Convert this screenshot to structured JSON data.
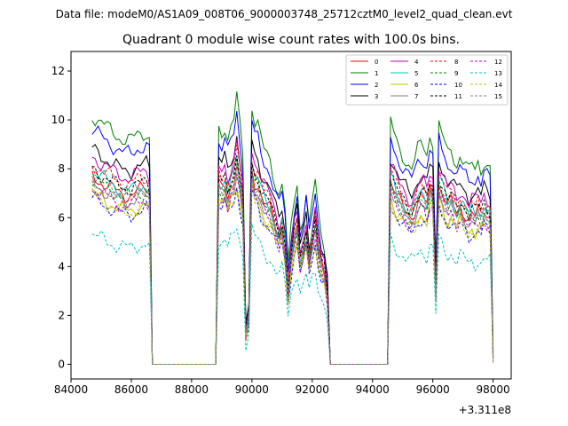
{
  "chart_data": {
    "type": "line",
    "suptitle": "Data file: modeM0/AS1A09_008T06_9000003748_25712cztM0_level2_quad_clean.evt",
    "title": "Quadrant 0 module wise count rates with 100.0s bins.",
    "xlabel": "",
    "ylabel": "",
    "x_offset_label": "+3.311e8",
    "xlim": [
      84000,
      98600
    ],
    "ylim": [
      -0.6,
      12.8
    ],
    "x_ticks": [
      84000,
      86000,
      88000,
      90000,
      92000,
      94000,
      96000,
      98000
    ],
    "x_tick_labels": [
      "84000",
      "86000",
      "88000",
      "90000",
      "92000",
      "94000",
      "96000",
      "98000"
    ],
    "y_ticks": [
      0,
      2,
      4,
      6,
      8,
      10,
      12
    ],
    "y_tick_labels": [
      "0",
      "2",
      "4",
      "6",
      "8",
      "10",
      "12"
    ],
    "grid": false,
    "legend_position": "top-right",
    "legend_columns": 4,
    "x_range": [
      84700,
      98000
    ],
    "x_step": 100,
    "series": [
      {
        "name": "0",
        "color": "#ff0000",
        "dash": "solid",
        "base": 7.7
      },
      {
        "name": "1",
        "color": "#008000",
        "dash": "solid",
        "base": 10.2
      },
      {
        "name": "2",
        "color": "#0000ff",
        "dash": "solid",
        "base": 9.6
      },
      {
        "name": "3",
        "color": "#000000",
        "dash": "solid",
        "base": 8.8
      },
      {
        "name": "4",
        "color": "#bf00bf",
        "dash": "solid",
        "base": 8.5
      },
      {
        "name": "5",
        "color": "#00bfbf",
        "dash": "solid",
        "base": 7.9
      },
      {
        "name": "6",
        "color": "#bfbf00",
        "dash": "solid",
        "base": 7.0
      },
      {
        "name": "7",
        "color": "#808080",
        "dash": "solid",
        "base": 7.4
      },
      {
        "name": "8",
        "color": "#ff0000",
        "dash": "dashed",
        "base": 8.2
      },
      {
        "name": "9",
        "color": "#008000",
        "dash": "dashed",
        "base": 7.6
      },
      {
        "name": "10",
        "color": "#0000ff",
        "dash": "dashed",
        "base": 6.8
      },
      {
        "name": "11",
        "color": "#000000",
        "dash": "dashed",
        "base": 8.0
      },
      {
        "name": "12",
        "color": "#bf00bf",
        "dash": "dashed",
        "base": 7.2
      },
      {
        "name": "13",
        "color": "#00bfbf",
        "dash": "dashed",
        "base": 5.3
      },
      {
        "name": "14",
        "color": "#bfbf00",
        "dash": "dashed",
        "base": 6.9
      },
      {
        "name": "15",
        "color": "#808080",
        "dash": "dashed",
        "base": 7.5
      }
    ],
    "profile": [
      [
        84700,
        1.0
      ],
      [
        84800,
        0.99
      ],
      [
        85000,
        0.97
      ],
      [
        85200,
        0.95
      ],
      [
        85400,
        0.93
      ],
      [
        85600,
        0.91
      ],
      [
        85800,
        0.9
      ],
      [
        86000,
        0.9
      ],
      [
        86200,
        0.92
      ],
      [
        86500,
        0.93
      ],
      [
        86600,
        0.91
      ],
      [
        86700,
        0.0
      ],
      [
        88800,
        0.0
      ],
      [
        88900,
        0.95
      ],
      [
        89000,
        0.93
      ],
      [
        89100,
        0.96
      ],
      [
        89200,
        0.9
      ],
      [
        89300,
        0.95
      ],
      [
        89400,
        0.98
      ],
      [
        89500,
        1.07
      ],
      [
        89600,
        0.96
      ],
      [
        89700,
        0.85
      ],
      [
        89800,
        0.16
      ],
      [
        89900,
        0.25
      ],
      [
        90000,
        1.04
      ],
      [
        90100,
        0.97
      ],
      [
        90200,
        0.96
      ],
      [
        90300,
        0.9
      ],
      [
        90400,
        0.86
      ],
      [
        90500,
        0.84
      ],
      [
        90600,
        0.82
      ],
      [
        90700,
        0.77
      ],
      [
        90800,
        0.72
      ],
      [
        90900,
        0.68
      ],
      [
        91000,
        0.73
      ],
      [
        91100,
        0.62
      ],
      [
        91200,
        0.38
      ],
      [
        91300,
        0.55
      ],
      [
        91400,
        0.66
      ],
      [
        91500,
        0.72
      ],
      [
        91600,
        0.55
      ],
      [
        91700,
        0.6
      ],
      [
        91800,
        0.69
      ],
      [
        91900,
        0.55
      ],
      [
        92000,
        0.65
      ],
      [
        92100,
        0.73
      ],
      [
        92200,
        0.6
      ],
      [
        92300,
        0.52
      ],
      [
        92400,
        0.48
      ],
      [
        92500,
        0.37
      ],
      [
        92600,
        0.0
      ],
      [
        94500,
        0.0
      ],
      [
        94600,
        0.97
      ],
      [
        94700,
        0.93
      ],
      [
        94800,
        0.89
      ],
      [
        94900,
        0.86
      ],
      [
        95000,
        0.84
      ],
      [
        95100,
        0.82
      ],
      [
        95200,
        0.8
      ],
      [
        95300,
        0.79
      ],
      [
        95400,
        0.82
      ],
      [
        95500,
        0.86
      ],
      [
        95600,
        0.88
      ],
      [
        95700,
        0.87
      ],
      [
        95800,
        0.84
      ],
      [
        95900,
        0.92
      ],
      [
        96000,
        0.9
      ],
      [
        96100,
        0.38
      ],
      [
        96200,
        0.96
      ],
      [
        96300,
        0.92
      ],
      [
        96400,
        0.88
      ],
      [
        96500,
        0.84
      ],
      [
        96600,
        0.86
      ],
      [
        96700,
        0.83
      ],
      [
        96800,
        0.8
      ],
      [
        96900,
        0.84
      ],
      [
        97000,
        0.82
      ],
      [
        97100,
        0.8
      ],
      [
        97200,
        0.77
      ],
      [
        97300,
        0.8
      ],
      [
        97400,
        0.78
      ],
      [
        97500,
        0.81
      ],
      [
        97600,
        0.78
      ],
      [
        97700,
        0.82
      ],
      [
        97800,
        0.8
      ],
      [
        97900,
        0.79
      ],
      [
        98000,
        0.05
      ]
    ]
  }
}
